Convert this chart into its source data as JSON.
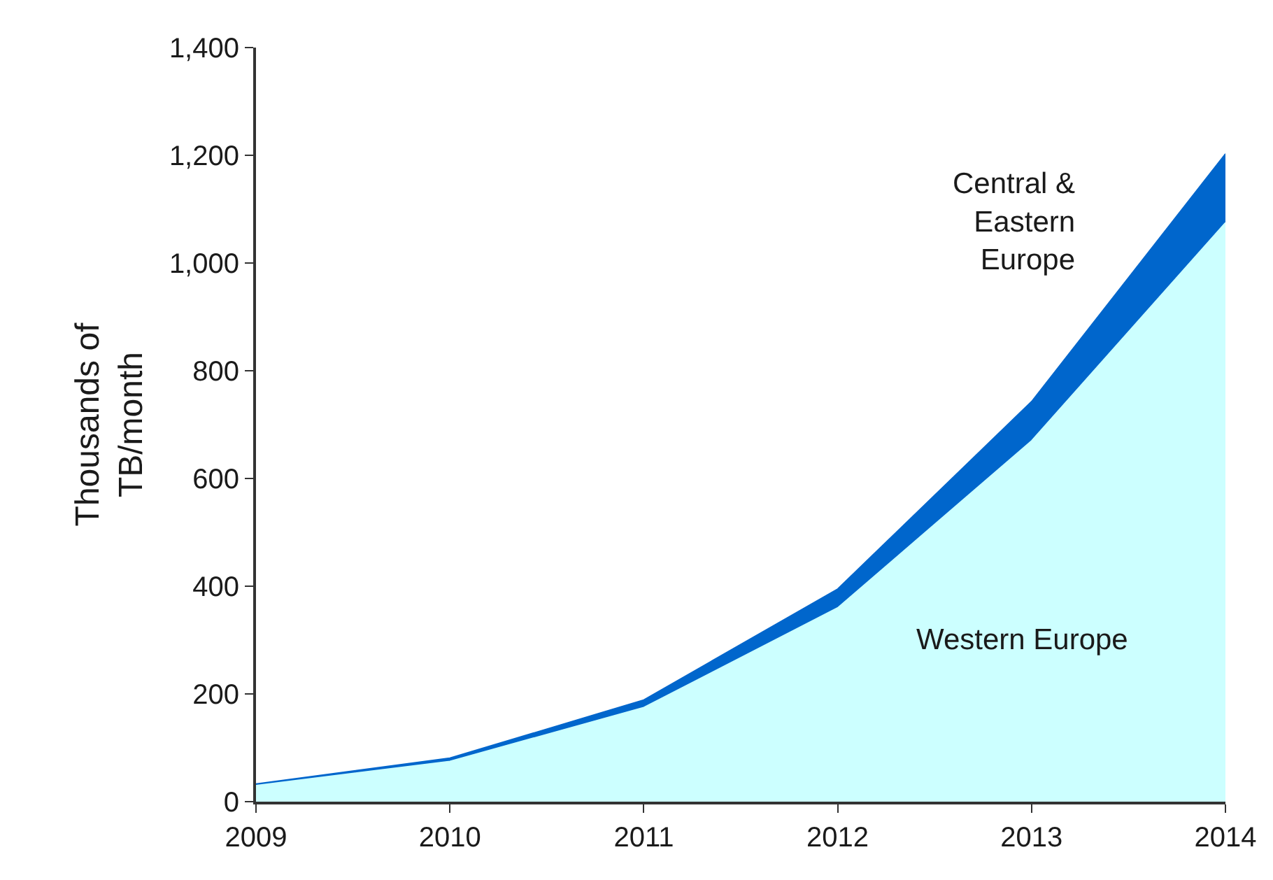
{
  "chart_data": {
    "type": "area",
    "stacked": true,
    "ylabel": "Thousands of\nTB/month",
    "x": [
      2009,
      2010,
      2011,
      2012,
      2013,
      2014
    ],
    "xlim": [
      2009,
      2014
    ],
    "xticks": [
      2009,
      2010,
      2011,
      2012,
      2013,
      2014
    ],
    "ylim": [
      0,
      1400
    ],
    "yticks": [
      0,
      {
        "value": 200,
        "label": "200"
      },
      {
        "value": 400,
        "label": "400"
      },
      {
        "value": 600,
        "label": "600"
      },
      {
        "value": 800,
        "label": "800"
      },
      {
        "value": 1000,
        "label": "1,000"
      },
      {
        "value": 1200,
        "label": "1,200"
      },
      {
        "value": 1400,
        "label": "1,400"
      }
    ],
    "legend": false,
    "series": [
      {
        "name": "Western Europe",
        "color": "#ccffff",
        "values": [
          30,
          75,
          175,
          360,
          670,
          1075
        ]
      },
      {
        "name": "Central &\nEastern\nEurope",
        "color": "#0066cc",
        "values": [
          3,
          6,
          14,
          35,
          73,
          128
        ]
      }
    ]
  }
}
